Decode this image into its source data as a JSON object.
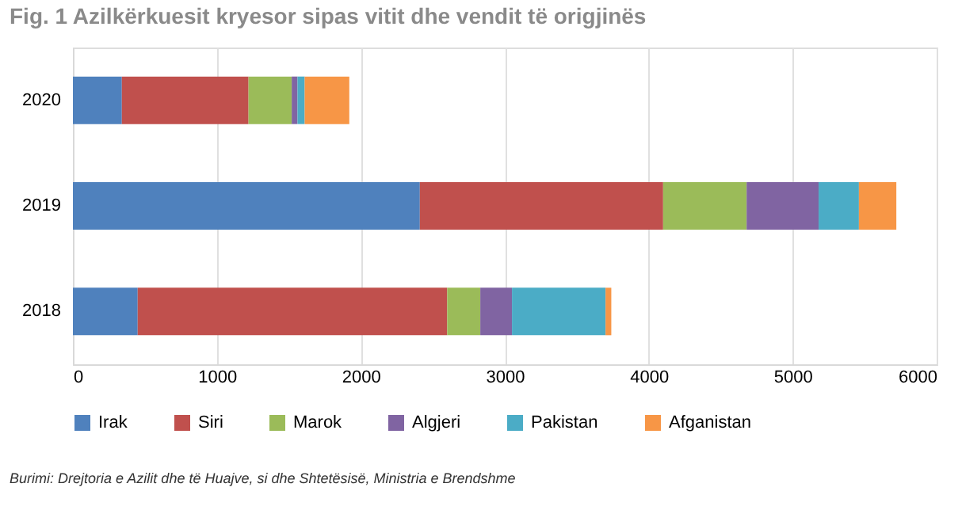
{
  "chart_data": {
    "type": "bar",
    "title": "Fig. 1 Azilkërkuesit kryesor sipas vitit dhe vendit të origjinës",
    "orientation": "horizontal",
    "stacked": true,
    "categories": [
      "2020",
      "2019",
      "2018"
    ],
    "series": [
      {
        "name": "Irak",
        "color": "#4f81bd",
        "values": [
          340,
          2410,
          450
        ]
      },
      {
        "name": "Siri",
        "color": "#c0504d",
        "values": [
          880,
          1690,
          2150
        ]
      },
      {
        "name": "Marok",
        "color": "#9bbb59",
        "values": [
          300,
          580,
          230
        ]
      },
      {
        "name": "Algjeri",
        "color": "#8064a2",
        "values": [
          40,
          500,
          220
        ]
      },
      {
        "name": "Pakistan",
        "color": "#4bacc6",
        "values": [
          50,
          280,
          650
        ]
      },
      {
        "name": "Afganistan",
        "color": "#f79646",
        "values": [
          310,
          260,
          40
        ]
      }
    ],
    "xlim": [
      0,
      6000
    ],
    "xticks": [
      0,
      1000,
      2000,
      3000,
      4000,
      5000,
      6000
    ],
    "grid": "x",
    "legend": "bottom",
    "annotations": [
      "Burimi: Drejtoria e Azilit dhe të Huajve, si dhe Shtetësisë, Ministria e Brendshme"
    ]
  }
}
